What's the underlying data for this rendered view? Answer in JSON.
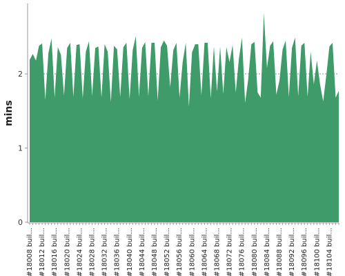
{
  "colors": {
    "area": "#3f9b69",
    "grid": "#6e8a6e",
    "axis": "#999999"
  },
  "chart_data": {
    "type": "area",
    "title": "",
    "xlabel": "",
    "ylabel": "mins",
    "ylim": [
      0,
      2.95
    ],
    "yticks": [
      0,
      1,
      2
    ],
    "grid": true,
    "x_labels": [
      "#18008 buil...",
      "#18012 buil...",
      "#18016 buil...",
      "#18020 buil...",
      "#18024 buil...",
      "#18028 buil...",
      "#18032 buil...",
      "#18036 buil...",
      "#18040 buil...",
      "#18044 buil...",
      "#18048 buil...",
      "#18052 buil...",
      "#18056 buil...",
      "#18060 buil...",
      "#18064 buil...",
      "#18068 buil...",
      "#18072 buil...",
      "#18076 buil...",
      "#18080 buil...",
      "#18084 buil...",
      "#18088 buil...",
      "#18092 buil...",
      "#18096 buil...",
      "#18100 buil...",
      "#18104 buil..."
    ],
    "series": [
      {
        "values": [
          2.19,
          2.27,
          2.18,
          2.38,
          2.41,
          1.65,
          2.28,
          2.48,
          1.68,
          2.36,
          2.26,
          1.71,
          2.35,
          2.42,
          1.69,
          2.39,
          2.4,
          1.67,
          2.3,
          2.44,
          1.7,
          2.35,
          2.37,
          1.68,
          2.4,
          2.3,
          1.62,
          2.38,
          2.33,
          1.69,
          2.36,
          2.42,
          1.66,
          2.32,
          2.51,
          1.69,
          2.35,
          2.43,
          1.7,
          2.42,
          2.42,
          1.64,
          2.36,
          2.45,
          2.38,
          1.82,
          2.32,
          2.42,
          1.68,
          2.16,
          2.42,
          1.56,
          2.29,
          2.4,
          2.4,
          1.71,
          2.42,
          2.42,
          1.67,
          2.37,
          1.76,
          2.37,
          1.73,
          2.36,
          2.16,
          2.39,
          1.75,
          2.2,
          2.49,
          1.61,
          1.93,
          2.4,
          2.43,
          1.75,
          1.68,
          2.82,
          2.08,
          2.38,
          2.44,
          1.72,
          1.91,
          2.33,
          2.45,
          1.69,
          2.35,
          2.49,
          1.7,
          2.38,
          2.42,
          1.69,
          2.3,
          1.86,
          2.18,
          1.86,
          1.63,
          1.98,
          2.37,
          2.42,
          1.68,
          1.77
        ]
      }
    ]
  }
}
